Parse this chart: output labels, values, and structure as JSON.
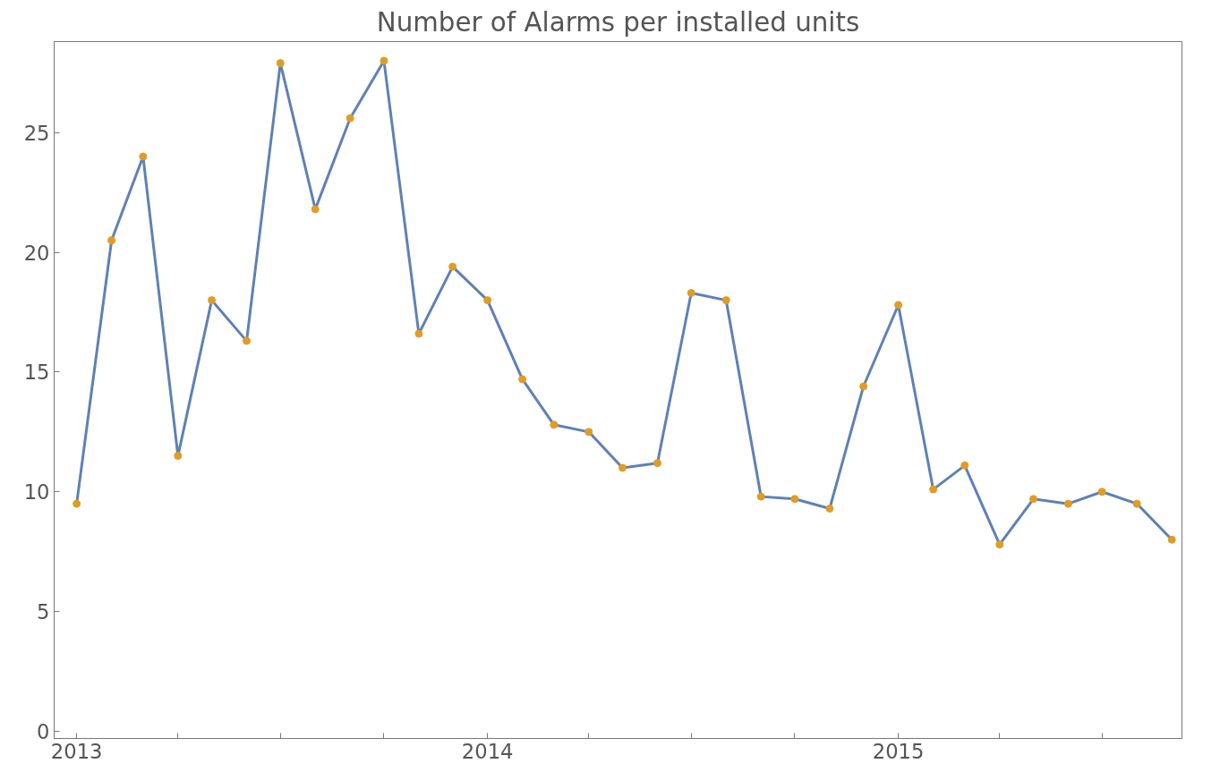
{
  "chart_data": {
    "type": "line",
    "title": "Number of Alarms per installed units",
    "x": [
      "2013-01",
      "2013-02",
      "2013-03",
      "2013-04",
      "2013-05",
      "2013-06",
      "2013-07",
      "2013-08",
      "2013-09",
      "2013-10",
      "2013-11",
      "2013-12",
      "2014-01",
      "2014-02",
      "2014-03",
      "2014-04",
      "2014-05",
      "2014-06",
      "2014-07",
      "2014-08",
      "2014-09",
      "2014-10",
      "2014-11",
      "2014-12",
      "2015-01",
      "2015-02",
      "2015-03",
      "2015-04",
      "2015-05",
      "2015-06",
      "2015-07",
      "2015-08",
      "2015-09"
    ],
    "series": [
      {
        "color": "#5e81b5",
        "colors": [
          "#e19c24",
          "#e19c24",
          "#e19c24",
          "#e19c24",
          "#e19c24",
          "#e19c24",
          "#e19c24",
          "#e19c24",
          "#e19c24",
          "#e19c24",
          "#e19c24",
          "#e19c24",
          "#e19c24",
          "#e19c24",
          "#e19c24",
          "#e19c24",
          "#e19c24",
          "#e19c24",
          "#e19c24",
          "#e19c24",
          "#e19c24",
          "#e19c24",
          "#e19c24",
          "#e19c24",
          "#e19c24",
          "#e19c24",
          "#e19c24",
          "#e19c24",
          "#e19c24",
          "#e19c24",
          "#e19c24",
          "#e19c24",
          "#e19c24"
        ],
        "values": [
          9.5,
          20.5,
          24.0,
          11.5,
          18.0,
          16.3,
          27.9,
          21.8,
          25.6,
          28.0,
          16.6,
          19.4,
          18.0,
          14.7,
          12.8,
          12.5,
          11.0,
          11.2,
          18.3,
          18.0,
          9.8,
          9.7,
          9.3,
          14.4,
          17.8,
          10.1,
          11.1,
          7.8,
          9.7,
          9.5,
          10.0,
          9.5,
          8.0
        ]
      }
    ],
    "xlim": [
      "2012-12-12",
      "2015-09-10"
    ],
    "xticks": [
      {
        "value": "2013-01-01",
        "label": "2013"
      },
      {
        "value": "2013-04-01",
        "label": null
      },
      {
        "value": "2013-07-01",
        "label": null
      },
      {
        "value": "2013-10-01",
        "label": null
      },
      {
        "value": "2014-01-01",
        "label": "2014"
      },
      {
        "value": "2014-04-01",
        "label": null
      },
      {
        "value": "2014-07-01",
        "label": null
      },
      {
        "value": "2014-10-01",
        "label": null
      },
      {
        "value": "2015-01-01",
        "label": "2015"
      },
      {
        "value": "2015-04-01",
        "label": null
      },
      {
        "value": "2015-07-01",
        "label": null
      }
    ],
    "ylim": [
      -0.3,
      28.8
    ],
    "yticks": [
      0,
      5,
      10,
      15,
      20,
      25
    ],
    "grid": false,
    "marker": "circle",
    "line_style": "solid"
  }
}
